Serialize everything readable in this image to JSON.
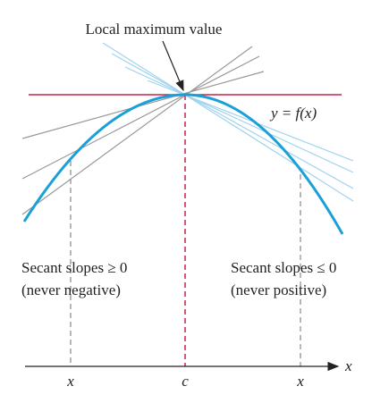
{
  "title": "Local maximum value",
  "curve_label": "y = f(x)",
  "left_note": {
    "line1": "Secant slopes ≥ 0",
    "line2": "(never negative)"
  },
  "right_note": {
    "line1": "Secant slopes ≤ 0",
    "line2": "(never positive)"
  },
  "axis": {
    "label": "x",
    "ticks": [
      "x",
      "c",
      "x"
    ]
  }
}
